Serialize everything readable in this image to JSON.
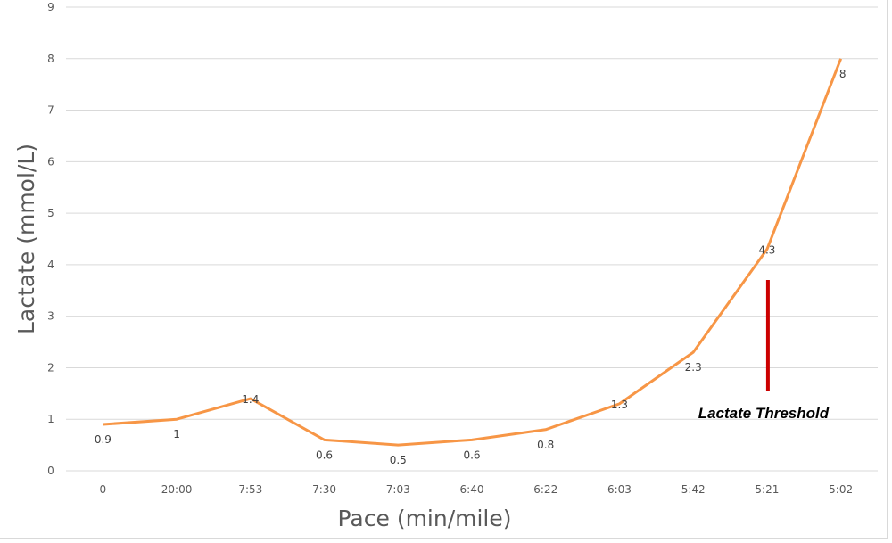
{
  "chart_data": {
    "type": "line",
    "title": "",
    "xlabel": "Pace (min/mile)",
    "ylabel": "Lactate (mmol/L)",
    "ylim": [
      0,
      9
    ],
    "yticks": [
      "0",
      "1",
      "2",
      "3",
      "4",
      "5",
      "6",
      "7",
      "8",
      "9"
    ],
    "categories": [
      "0",
      "20:00",
      "7:53",
      "7:30",
      "7:03",
      "6:40",
      "6:22",
      "6:03",
      "5:42",
      "5:21",
      "5:02"
    ],
    "series": [
      {
        "name": "Lactate",
        "values": [
          0.9,
          1,
          1.4,
          0.6,
          0.5,
          0.6,
          0.8,
          1.3,
          2.3,
          4.3,
          8
        ],
        "labels": [
          "0.9",
          "1",
          "1.4",
          "0.6",
          "0.5",
          "0.6",
          "0.8",
          "1.3",
          "2.3",
          "4.3",
          "8"
        ],
        "color": "#f79646"
      }
    ],
    "grid": true,
    "legend": "none",
    "annotation": {
      "text": "Lactate Threshold",
      "category": "5:21",
      "marker_color": "#cc0000"
    }
  }
}
